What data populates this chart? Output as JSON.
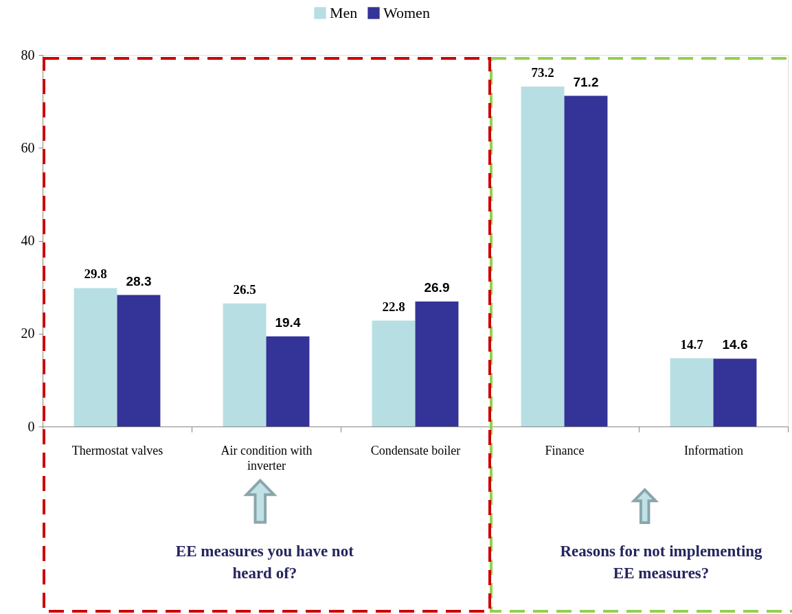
{
  "chart_data": {
    "type": "bar",
    "categories": [
      "Thermostat valves",
      "Air condition with inverter",
      "Condensate boiler",
      "Finance",
      "Information"
    ],
    "series": [
      {
        "name": "Men",
        "color": "#b7dfe3",
        "values": [
          29.8,
          26.5,
          22.8,
          73.2,
          14.7
        ]
      },
      {
        "name": "Women",
        "color": "#343398",
        "values": [
          28.3,
          19.4,
          26.9,
          71.2,
          14.6
        ]
      }
    ],
    "ylim": [
      0,
      80
    ],
    "yticks": [
      0,
      20,
      40,
      60,
      80
    ],
    "data_labels": true,
    "legend": "top",
    "annotations": [
      "EE measures you have not heard of?",
      "Reasons for not implementing EE measures?"
    ]
  }
}
